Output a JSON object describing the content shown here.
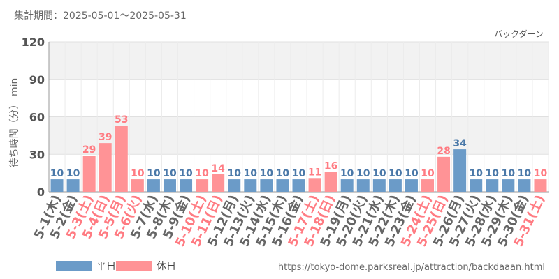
{
  "header": {
    "period_label": "集計期間：2025-05-01～2025-05-31",
    "attraction_name": "バックダーン"
  },
  "colors": {
    "weekday": "#6b9bc8",
    "holiday": "#ff9396",
    "weekday_text": "#4a78a8",
    "holiday_text": "#ff7b82",
    "axis_text": "#666666"
  },
  "legend": [
    {
      "label": "平日",
      "color": "#6b9bc8"
    },
    {
      "label": "休日",
      "color": "#ff9396"
    }
  ],
  "footer": {
    "source_url": "https://tokyo-dome.parksreal.jp/attraction/backdaaan.html"
  },
  "chart_data": {
    "type": "bar",
    "title": "",
    "xlabel": "",
    "ylabel": "待ち時間（分） min",
    "ylim": [
      0,
      120
    ],
    "yticks": [
      0,
      30,
      60,
      90,
      120
    ],
    "grid": true,
    "legend_position": "bottom-left",
    "categories": [
      "5-1(木)",
      "5-2(金)",
      "5-3(土)",
      "5-4(日)",
      "5-5(月)",
      "5-6(火)",
      "5-7(水)",
      "5-8(木)",
      "5-9(金)",
      "5-10(土)",
      "5-11(日)",
      "5-12(月)",
      "5-13(火)",
      "5-14(水)",
      "5-15(木)",
      "5-16(金)",
      "5-17(土)",
      "5-18(日)",
      "5-19(月)",
      "5-20(火)",
      "5-21(水)",
      "5-22(木)",
      "5-23(金)",
      "5-24(土)",
      "5-25(日)",
      "5-26(月)",
      "5-27(火)",
      "5-28(水)",
      "5-29(木)",
      "5-30(金)",
      "5-31(土)"
    ],
    "values": [
      10,
      10,
      29,
      39,
      53,
      10,
      10,
      10,
      10,
      10,
      14,
      10,
      10,
      10,
      10,
      10,
      11,
      16,
      10,
      10,
      10,
      10,
      10,
      10,
      28,
      34,
      10,
      10,
      10,
      10,
      10
    ],
    "day_types": [
      "平日",
      "平日",
      "休日",
      "休日",
      "休日",
      "休日",
      "平日",
      "平日",
      "平日",
      "休日",
      "休日",
      "平日",
      "平日",
      "平日",
      "平日",
      "平日",
      "休日",
      "休日",
      "平日",
      "平日",
      "平日",
      "平日",
      "平日",
      "休日",
      "休日",
      "平日",
      "平日",
      "平日",
      "平日",
      "平日",
      "休日"
    ]
  }
}
